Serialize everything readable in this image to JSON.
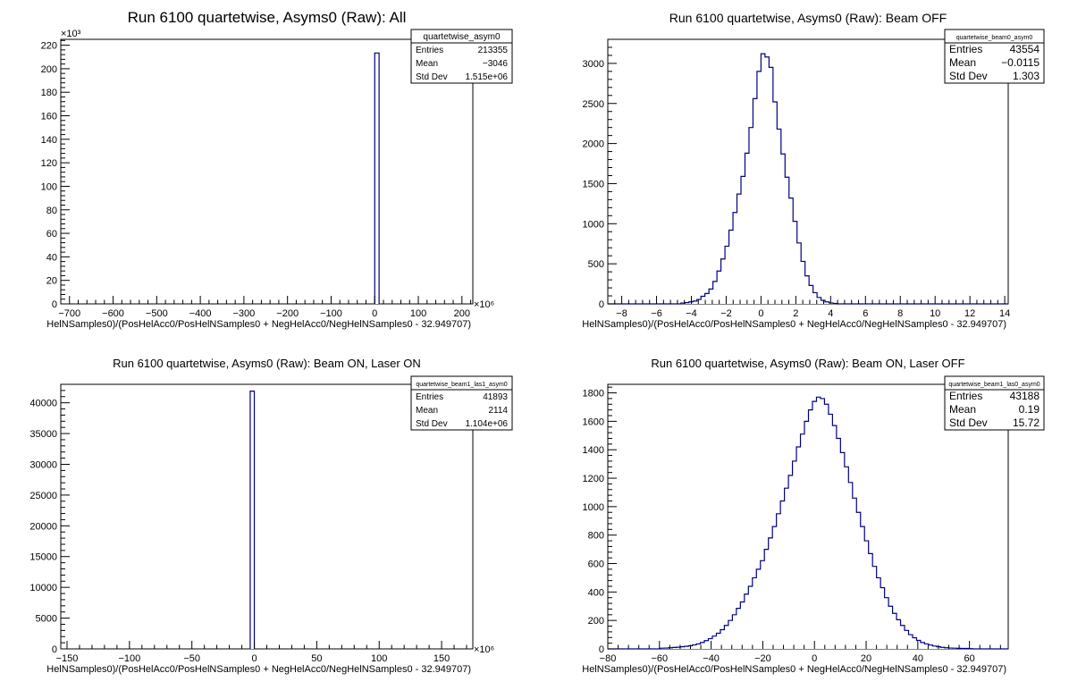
{
  "chart_data": [
    {
      "type": "bar",
      "title": "Run 6100 quartetwise, Asyms0 (Raw): All",
      "xlabel": "HelNSamples0)/(PosHelAcc0/PosHelNSamples0 + NegHelAcc0/NegHelNSamples0 - 32.949707)",
      "ylabel": "",
      "x_multiplier": "×10⁶",
      "y_multiplier": "×10³",
      "xlim": [
        -720,
        225
      ],
      "ylim": [
        0,
        225
      ],
      "grid": false,
      "xticks": [
        -700,
        -600,
        -500,
        -400,
        -300,
        -200,
        -100,
        0,
        100,
        200
      ],
      "yticks": [
        0,
        20,
        40,
        60,
        80,
        100,
        120,
        140,
        160,
        180,
        200,
        220
      ],
      "bar_width": 10,
      "x": [
        5
      ],
      "values": [
        213.355
      ],
      "stats": {
        "name": "quartetwise_asym0",
        "rows": [
          [
            "Entries",
            "213355"
          ],
          [
            "Mean",
            "−3046"
          ],
          [
            "Std Dev",
            "1.515e+06"
          ]
        ]
      }
    },
    {
      "type": "bar",
      "title": "Run 6100 quartetwise, Asyms0 (Raw): Beam OFF",
      "xlabel": "HelNSamples0)/(PosHelAcc0/PosHelNSamples0 + NegHelAcc0/NegHelNSamples0 - 32.949707)",
      "ylabel": "",
      "x_multiplier": "",
      "y_multiplier": "",
      "xlim": [
        -8.8,
        14.2
      ],
      "ylim": [
        0,
        3300
      ],
      "grid": false,
      "xticks": [
        -8,
        -6,
        -4,
        -2,
        0,
        2,
        4,
        6,
        8,
        10,
        12,
        14
      ],
      "yticks": [
        0,
        500,
        1000,
        1500,
        2000,
        2500,
        3000
      ],
      "bar_width": 0.23,
      "x": [
        -4.485,
        -4.255,
        -4.025,
        -3.795,
        -3.565,
        -3.335,
        -3.105,
        -2.875,
        -2.645,
        -2.415,
        -2.185,
        -1.955,
        -1.725,
        -1.495,
        -1.265,
        -1.035,
        -0.805,
        -0.575,
        -0.345,
        -0.115,
        0.115,
        0.345,
        0.575,
        0.805,
        1.035,
        1.265,
        1.495,
        1.725,
        1.955,
        2.185,
        2.415,
        2.645,
        2.875,
        3.105,
        3.335,
        3.565,
        3.795,
        4.025,
        4.255
      ],
      "values": [
        10,
        15,
        25,
        35,
        55,
        95,
        130,
        185,
        280,
        410,
        560,
        720,
        920,
        1140,
        1370,
        1590,
        1880,
        2200,
        2560,
        2900,
        3120,
        3080,
        2950,
        2520,
        2180,
        1870,
        1580,
        1320,
        1030,
        760,
        530,
        350,
        230,
        140,
        80,
        45,
        25,
        12,
        6
      ],
      "stats": {
        "name": "quartetwise_beam0_asym0",
        "rows": [
          [
            "Entries",
            "43554"
          ],
          [
            "Mean",
            "−0.0115"
          ],
          [
            "Std Dev",
            "1.303"
          ]
        ]
      }
    },
    {
      "type": "bar",
      "title": "Run 6100 quartetwise, Asyms0 (Raw): Beam ON, Laser ON",
      "xlabel": "HelNSamples0)/(PosHelAcc0/PosHelNSamples0 + NegHelAcc0/NegHelNSamples0 - 32.949707)",
      "ylabel": "",
      "x_multiplier": "×10⁶",
      "y_multiplier": "",
      "xlim": [
        -155,
        175
      ],
      "ylim": [
        0,
        43000
      ],
      "grid": false,
      "xticks": [
        -150,
        -100,
        -50,
        0,
        50,
        100,
        150
      ],
      "yticks": [
        0,
        5000,
        10000,
        15000,
        20000,
        25000,
        30000,
        35000,
        40000
      ],
      "bar_width": 3.3,
      "x": [
        -1.65
      ],
      "values": [
        41893
      ],
      "stats": {
        "name": "quartetwise_beam1_las1_asym0",
        "rows": [
          [
            "Entries",
            "41893"
          ],
          [
            "Mean",
            "2114"
          ],
          [
            "Std Dev",
            "1.104e+06"
          ]
        ]
      }
    },
    {
      "type": "bar",
      "title": "Run 6100 quartetwise, Asyms0 (Raw): Beam ON, Laser OFF",
      "xlabel": "HelNSamples0)/(PosHelAcc0/PosHelNSamples0 + NegHelAcc0/NegHelNSamples0 - 32.949707)",
      "ylabel": "",
      "x_multiplier": "",
      "y_multiplier": "",
      "xlim": [
        -80,
        75
      ],
      "ylim": [
        0,
        1860
      ],
      "grid": false,
      "xticks": [
        -80,
        -60,
        -40,
        -20,
        0,
        20,
        40,
        60
      ],
      "yticks": [
        0,
        200,
        400,
        600,
        800,
        1000,
        1200,
        1400,
        1600,
        1800
      ],
      "bar_width": 1.55,
      "x": [
        -58.9,
        -57.35,
        -55.8,
        -54.25,
        -52.7,
        -51.15,
        -49.6,
        -48.05,
        -46.5,
        -44.95,
        -43.4,
        -41.85,
        -40.3,
        -38.75,
        -37.2,
        -35.65,
        -34.1,
        -32.55,
        -31.0,
        -29.45,
        -27.9,
        -26.35,
        -24.8,
        -23.25,
        -21.7,
        -20.15,
        -18.6,
        -17.05,
        -15.5,
        -13.95,
        -12.4,
        -10.85,
        -9.3,
        -7.75,
        -6.2,
        -4.65,
        -3.1,
        -1.55,
        0.0,
        1.55,
        3.1,
        4.65,
        6.2,
        7.75,
        9.3,
        10.85,
        12.4,
        13.95,
        15.5,
        17.05,
        18.6,
        20.15,
        21.7,
        23.25,
        24.8,
        26.35,
        27.9,
        29.45,
        31.0,
        32.55,
        34.1,
        35.65,
        37.2,
        38.75,
        40.3,
        41.85,
        43.4,
        44.95,
        46.5,
        48.05,
        49.6,
        51.15,
        52.7,
        54.25,
        55.8,
        57.35,
        58.9,
        60.45
      ],
      "values": [
        5,
        6,
        8,
        10,
        12,
        15,
        18,
        22,
        28,
        35,
        45,
        58,
        72,
        90,
        110,
        135,
        165,
        200,
        240,
        285,
        330,
        385,
        440,
        500,
        560,
        620,
        700,
        780,
        860,
        950,
        1040,
        1130,
        1220,
        1320,
        1420,
        1510,
        1600,
        1680,
        1740,
        1770,
        1760,
        1720,
        1650,
        1570,
        1480,
        1380,
        1280,
        1170,
        1060,
        960,
        860,
        760,
        670,
        580,
        500,
        430,
        360,
        300,
        250,
        205,
        165,
        130,
        100,
        78,
        60,
        45,
        35,
        27,
        20,
        15,
        11,
        8,
        6,
        5,
        4,
        3,
        3,
        2
      ],
      "stats": {
        "name": "quartetwise_beam1_las0_asym0",
        "rows": [
          [
            "Entries",
            "43188"
          ],
          [
            "Mean",
            "0.19"
          ],
          [
            "Std Dev",
            "15.72"
          ]
        ]
      }
    }
  ]
}
